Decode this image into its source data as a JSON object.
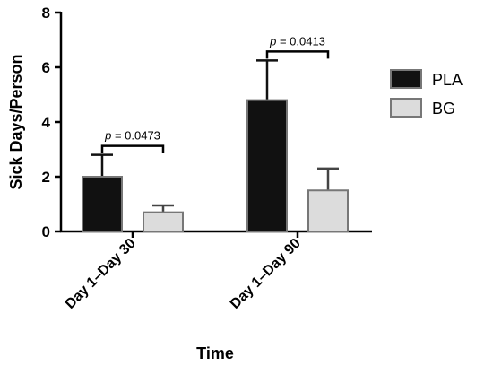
{
  "chart_data": {
    "type": "bar",
    "categories": [
      "Day 1–Day 30",
      "Day 1–Day 90"
    ],
    "series": [
      {
        "name": "PLA",
        "values": [
          2.0,
          4.8
        ],
        "errors": [
          0.8,
          1.45
        ],
        "color": "#111111"
      },
      {
        "name": "BG",
        "values": [
          0.7,
          1.5
        ],
        "errors": [
          0.25,
          0.8
        ],
        "color": "#dcdcdc"
      }
    ],
    "ylabel": "Sick Days/Person",
    "xlabel": "Time",
    "ylim": [
      0,
      8
    ],
    "yticks": [
      0,
      2,
      4,
      6,
      8
    ],
    "legend_position": "right",
    "annotations": [
      {
        "category_index": 0,
        "p_label": "p",
        "p_value": " = 0.0473"
      },
      {
        "category_index": 1,
        "p_label": "p",
        "p_value": " = 0.0413"
      }
    ]
  }
}
